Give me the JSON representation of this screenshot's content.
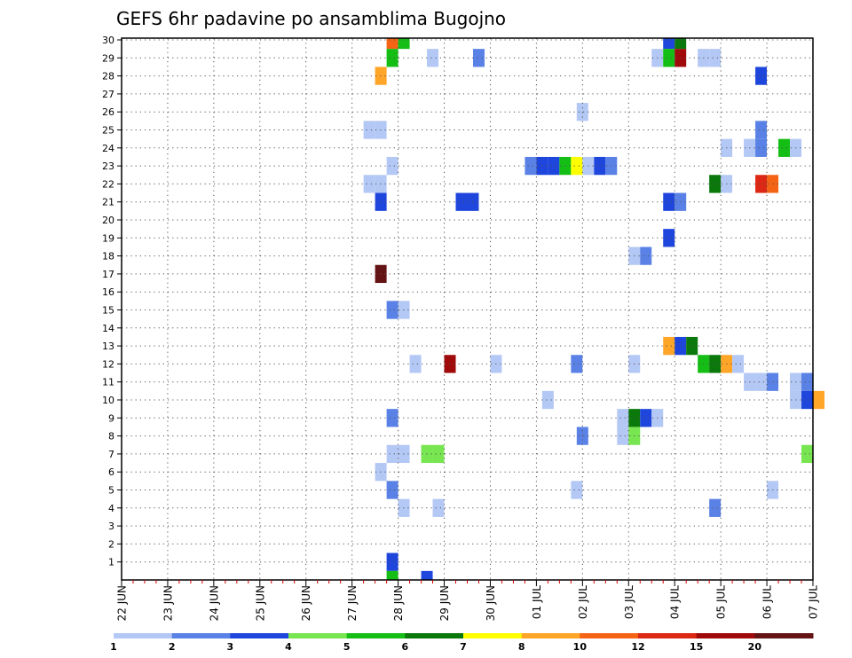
{
  "chart_data": {
    "type": "heatmap",
    "title": "GEFS 6hr padavine po ansamblima Bugojno",
    "xlabel": "",
    "ylabel": "",
    "x_tick_labels": [
      "22 JUN",
      "23 JUN",
      "24 JUN",
      "25 JUN",
      "26 JUN",
      "27 JUN",
      "28 JUN",
      "29 JUN",
      "30 JUN",
      "01 JUL",
      "02 JUL",
      "03 JUL",
      "04 JUL",
      "05 JUL",
      "06 JUL",
      "07 JUL"
    ],
    "y_tick_labels": [
      "1",
      "2",
      "3",
      "4",
      "5",
      "6",
      "7",
      "8",
      "9",
      "10",
      "11",
      "12",
      "13",
      "14",
      "15",
      "16",
      "17",
      "18",
      "19",
      "20",
      "21",
      "22",
      "23",
      "24",
      "25",
      "26",
      "27",
      "28",
      "29",
      "30"
    ],
    "grid": true,
    "time_steps_per_day": 4,
    "members": 30,
    "colorbar": {
      "levels": [
        "1",
        "2",
        "3",
        "4",
        "5",
        "6",
        "7",
        "8",
        "10",
        "12",
        "15",
        "20"
      ],
      "colors": [
        "#b4c8f5",
        "#5a82e6",
        "#1e46dc",
        "#78e650",
        "#14be14",
        "#0a780a",
        "#ffff00",
        "#ffa528",
        "#f56414",
        "#dc2814",
        "#a00a0a",
        "#641414"
      ]
    },
    "cells": [
      {
        "member": 30,
        "step": 23.5,
        "color": "#f56414"
      },
      {
        "member": 30,
        "step": 24.5,
        "color": "#14be14"
      },
      {
        "member": 30,
        "step": 47.5,
        "color": "#1e46dc"
      },
      {
        "member": 30,
        "step": 48.5,
        "color": "#0a780a"
      },
      {
        "member": 29,
        "step": 23.5,
        "color": "#14be14"
      },
      {
        "member": 29,
        "step": 27,
        "color": "#b4c8f5"
      },
      {
        "member": 29,
        "step": 31,
        "color": "#5a82e6"
      },
      {
        "member": 29,
        "step": 46.5,
        "color": "#b4c8f5"
      },
      {
        "member": 29,
        "step": 47.5,
        "color": "#14be14"
      },
      {
        "member": 29,
        "step": 48.5,
        "color": "#a00a0a"
      },
      {
        "member": 29,
        "step": 50.5,
        "color": "#b4c8f5"
      },
      {
        "member": 29,
        "step": 51.5,
        "color": "#b4c8f5"
      },
      {
        "member": 28,
        "step": 22.5,
        "color": "#ffa528"
      },
      {
        "member": 28,
        "step": 55.5,
        "color": "#1e46dc"
      },
      {
        "member": 26,
        "step": 40,
        "color": "#b4c8f5"
      },
      {
        "member": 25,
        "step": 21.5,
        "color": "#b4c8f5"
      },
      {
        "member": 25,
        "step": 22.5,
        "color": "#b4c8f5"
      },
      {
        "member": 25,
        "step": 55.5,
        "color": "#5a82e6"
      },
      {
        "member": 24,
        "step": 52.5,
        "color": "#b4c8f5"
      },
      {
        "member": 24,
        "step": 54.5,
        "color": "#b4c8f5"
      },
      {
        "member": 24,
        "step": 55.5,
        "color": "#5a82e6"
      },
      {
        "member": 24,
        "step": 57.5,
        "color": "#14be14"
      },
      {
        "member": 24,
        "step": 58.5,
        "color": "#b4c8f5"
      },
      {
        "member": 23,
        "step": 23.5,
        "color": "#b4c8f5"
      },
      {
        "member": 23,
        "step": 35.5,
        "color": "#5a82e6"
      },
      {
        "member": 23,
        "step": 36.5,
        "color": "#1e46dc"
      },
      {
        "member": 23,
        "step": 37.5,
        "color": "#1e46dc"
      },
      {
        "member": 23,
        "step": 38.5,
        "color": "#14be14"
      },
      {
        "member": 23,
        "step": 39.5,
        "color": "#ffff00"
      },
      {
        "member": 23,
        "step": 40.5,
        "color": "#b4c8f5"
      },
      {
        "member": 23,
        "step": 41.5,
        "color": "#1e46dc"
      },
      {
        "member": 23,
        "step": 42.5,
        "color": "#5a82e6"
      },
      {
        "member": 22,
        "step": 21.5,
        "color": "#b4c8f5"
      },
      {
        "member": 22,
        "step": 22.5,
        "color": "#b4c8f5"
      },
      {
        "member": 22,
        "step": 51.5,
        "color": "#0a780a"
      },
      {
        "member": 22,
        "step": 52.5,
        "color": "#b4c8f5"
      },
      {
        "member": 22,
        "step": 55.5,
        "color": "#dc2814"
      },
      {
        "member": 22,
        "step": 56.5,
        "color": "#f56414"
      },
      {
        "member": 21,
        "step": 22.5,
        "color": "#1e46dc"
      },
      {
        "member": 21,
        "step": 29.5,
        "color": "#1e46dc"
      },
      {
        "member": 21,
        "step": 30.5,
        "color": "#1e46dc"
      },
      {
        "member": 21,
        "step": 47.5,
        "color": "#1e46dc"
      },
      {
        "member": 21,
        "step": 48.5,
        "color": "#5a82e6"
      },
      {
        "member": 19,
        "step": 47.5,
        "color": "#1e46dc"
      },
      {
        "member": 18,
        "step": 44.5,
        "color": "#b4c8f5"
      },
      {
        "member": 18,
        "step": 45.5,
        "color": "#5a82e6"
      },
      {
        "member": 17,
        "step": 22.5,
        "color": "#641414"
      },
      {
        "member": 15,
        "step": 23.5,
        "color": "#5a82e6"
      },
      {
        "member": 15,
        "step": 24.5,
        "color": "#b4c8f5"
      },
      {
        "member": 13,
        "step": 47.5,
        "color": "#ffa528"
      },
      {
        "member": 13,
        "step": 48.5,
        "color": "#1e46dc"
      },
      {
        "member": 13,
        "step": 49.5,
        "color": "#0a780a"
      },
      {
        "member": 12,
        "step": 25.5,
        "color": "#b4c8f5"
      },
      {
        "member": 12,
        "step": 28.5,
        "color": "#a00a0a"
      },
      {
        "member": 12,
        "step": 32.5,
        "color": "#b4c8f5"
      },
      {
        "member": 12,
        "step": 39.5,
        "color": "#5a82e6"
      },
      {
        "member": 12,
        "step": 44.5,
        "color": "#b4c8f5"
      },
      {
        "member": 12,
        "step": 50.5,
        "color": "#14be14"
      },
      {
        "member": 12,
        "step": 51.5,
        "color": "#0a780a"
      },
      {
        "member": 12,
        "step": 52.5,
        "color": "#ffa528"
      },
      {
        "member": 12,
        "step": 53.5,
        "color": "#b4c8f5"
      },
      {
        "member": 11,
        "step": 54.5,
        "color": "#b4c8f5"
      },
      {
        "member": 11,
        "step": 55.5,
        "color": "#b4c8f5"
      },
      {
        "member": 11,
        "step": 56.5,
        "color": "#5a82e6"
      },
      {
        "member": 11,
        "step": 58.5,
        "color": "#b4c8f5"
      },
      {
        "member": 11,
        "step": 59.5,
        "color": "#5a82e6"
      },
      {
        "member": 10,
        "step": 37,
        "color": "#b4c8f5"
      },
      {
        "member": 10,
        "step": 58.5,
        "color": "#b4c8f5"
      },
      {
        "member": 10,
        "step": 59.5,
        "color": "#1e46dc"
      },
      {
        "member": 10,
        "step": 60.5,
        "color": "#ffa528"
      },
      {
        "member": 9,
        "step": 23.5,
        "color": "#5a82e6"
      },
      {
        "member": 9,
        "step": 43.5,
        "color": "#b4c8f5"
      },
      {
        "member": 9,
        "step": 44.5,
        "color": "#0a780a"
      },
      {
        "member": 9,
        "step": 45.5,
        "color": "#1e46dc"
      },
      {
        "member": 9,
        "step": 46.5,
        "color": "#b4c8f5"
      },
      {
        "member": 8,
        "step": 40,
        "color": "#5a82e6"
      },
      {
        "member": 8,
        "step": 43.5,
        "color": "#b4c8f5"
      },
      {
        "member": 8,
        "step": 44.5,
        "color": "#78e650"
      },
      {
        "member": 7,
        "step": 23.5,
        "color": "#b4c8f5"
      },
      {
        "member": 7,
        "step": 24.5,
        "color": "#b4c8f5"
      },
      {
        "member": 7,
        "step": 26.5,
        "color": "#78e650"
      },
      {
        "member": 7,
        "step": 27.5,
        "color": "#78e650"
      },
      {
        "member": 7,
        "step": 59.5,
        "color": "#78e650"
      },
      {
        "member": 6,
        "step": 22.5,
        "color": "#b4c8f5"
      },
      {
        "member": 5,
        "step": 23.5,
        "color": "#5a82e6"
      },
      {
        "member": 5,
        "step": 39.5,
        "color": "#b4c8f5"
      },
      {
        "member": 5,
        "step": 56.5,
        "color": "#b4c8f5"
      },
      {
        "member": 4,
        "step": 24.5,
        "color": "#b4c8f5"
      },
      {
        "member": 4,
        "step": 27.5,
        "color": "#b4c8f5"
      },
      {
        "member": 4,
        "step": 51.5,
        "color": "#5a82e6"
      },
      {
        "member": 1,
        "step": 23.5,
        "color": "#1e46dc"
      },
      {
        "member": 0,
        "step": 23.5,
        "color": "#14be14"
      },
      {
        "member": 0,
        "step": 26.5,
        "color": "#1e46dc"
      }
    ]
  }
}
